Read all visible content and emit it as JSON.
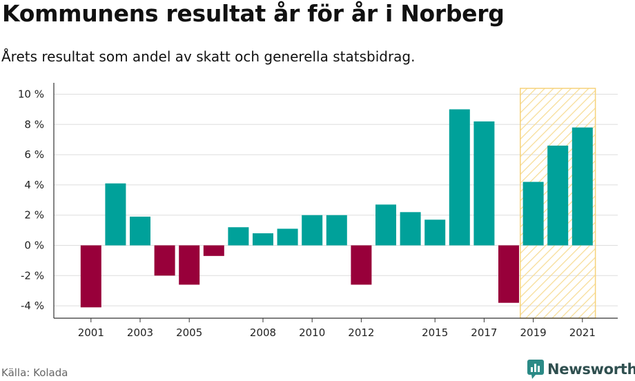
{
  "title": "Kommunens resultat år för år i Norberg",
  "subtitle": "Årets resultat som andel av skatt och generella statsbidrag.",
  "source": "Källa: Kolada",
  "logo_text": "Newsworthy",
  "colors": {
    "positive": "#00a19a",
    "negative": "#98003a",
    "grid": "#dddddd",
    "highlight_stroke": "#f5d27a",
    "highlight_hatch": "#f7dc95"
  },
  "chart_data": {
    "type": "bar",
    "categories": [
      "2001",
      "2002",
      "2003",
      "2004",
      "2005",
      "2006",
      "2007",
      "2008",
      "2009",
      "2010",
      "2011",
      "2012",
      "2013",
      "2014",
      "2015",
      "2016",
      "2017",
      "2018",
      "2019",
      "2020",
      "2021"
    ],
    "values": [
      -4.1,
      4.1,
      1.9,
      -2.0,
      -2.6,
      -0.7,
      1.2,
      0.8,
      1.1,
      2.0,
      2.0,
      -2.6,
      2.7,
      2.2,
      1.7,
      9.0,
      8.2,
      -3.8,
      4.2,
      6.6,
      7.8
    ],
    "x_tick_labels": [
      "2001",
      "2003",
      "2005",
      "2008",
      "2010",
      "2012",
      "2015",
      "2017",
      "2019",
      "2021"
    ],
    "y_ticks": [
      10,
      8,
      6,
      4,
      2,
      0,
      -2,
      -4
    ],
    "y_tick_labels": [
      "10 %",
      "8 %",
      "6 %",
      "4 %",
      "2 %",
      "0 %",
      "-2 %",
      "-4 %"
    ],
    "ylim": [
      -4.8,
      10.4
    ],
    "highlight_range": [
      "2019",
      "2021"
    ],
    "grid": true,
    "legend": "none"
  }
}
